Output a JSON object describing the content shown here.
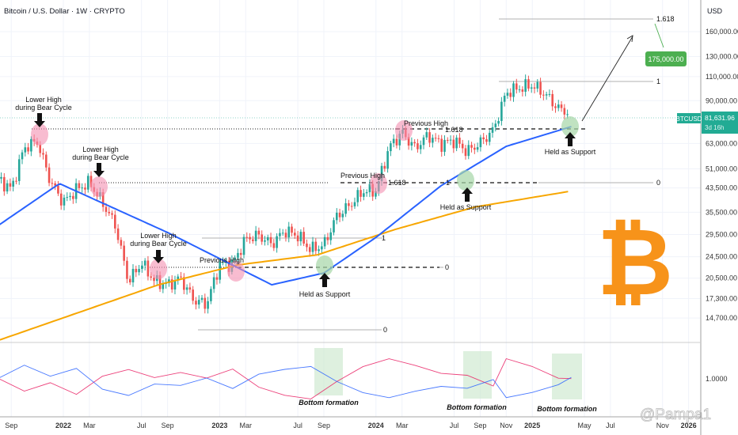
{
  "header": {
    "title": "Bitcoin / U.S. Dollar · 1W · CRYPTO"
  },
  "axis": {
    "currency": "USD",
    "price_ticks": [
      "160,000.00",
      "130,000.00",
      "110,000.00",
      "90,000.00",
      "63,000.00",
      "51,000.00",
      "43,500.00",
      "35,500.00",
      "29,500.00",
      "24,500.00",
      "20,500.00",
      "17,300.00",
      "14,700.00"
    ],
    "price_tick_values": [
      160000,
      130000,
      110000,
      90000,
      63000,
      51000,
      43500,
      35500,
      29500,
      24500,
      20500,
      17300,
      14700
    ],
    "lower_tick": "1.0000",
    "time_ticks": [
      {
        "label": "Sep",
        "m": -4,
        "bold": false
      },
      {
        "label": "2022",
        "m": 0,
        "bold": true
      },
      {
        "label": "Mar",
        "m": 2,
        "bold": false
      },
      {
        "label": "Jul",
        "m": 6,
        "bold": false
      },
      {
        "label": "Sep",
        "m": 8,
        "bold": false
      },
      {
        "label": "2023",
        "m": 12,
        "bold": true
      },
      {
        "label": "Mar",
        "m": 14,
        "bold": false
      },
      {
        "label": "Jul",
        "m": 18,
        "bold": false
      },
      {
        "label": "Sep",
        "m": 20,
        "bold": false
      },
      {
        "label": "2024",
        "m": 24,
        "bold": true
      },
      {
        "label": "Mar",
        "m": 26,
        "bold": false
      },
      {
        "label": "Jul",
        "m": 30,
        "bold": false
      },
      {
        "label": "Sep",
        "m": 32,
        "bold": false
      },
      {
        "label": "Nov",
        "m": 34,
        "bold": false
      },
      {
        "label": "2025",
        "m": 36,
        "bold": true
      },
      {
        "label": "May",
        "m": 40,
        "bold": false
      },
      {
        "label": "Jul",
        "m": 42,
        "bold": false
      },
      {
        "label": "Nov",
        "m": 46,
        "bold": false
      },
      {
        "label": "2026",
        "m": 48,
        "bold": true
      }
    ]
  },
  "price_label": {
    "symbol": "BTCUSD",
    "price": "81,631.96",
    "countdown": "3d 16h"
  },
  "target_label": "175,000.00",
  "annotations": {
    "lower_high_1": "Lower High",
    "lower_high_2": "during Bear Cycle",
    "previous_high": "Previous High",
    "held_support": "Held as Support",
    "bottom_formation": "Bottom formation",
    "fib_1618": "1.618",
    "fib_1": "1",
    "fib_0": "0"
  },
  "watermark": "@Pampa1",
  "colors": {
    "up": "#26a69a",
    "down": "#ef5350",
    "ma50": "#2962ff",
    "ma200": "#f7a600",
    "bitcoin": "#f7931a",
    "teal": "#22ab94",
    "green_label": "#4caf50"
  },
  "chart_data": {
    "type": "candlestick",
    "title": "Bitcoin / U.S. Dollar · 1W · CRYPTO",
    "x_unit": "months since Jan 2022",
    "y_scale": "log",
    "ylim": [
      13000,
      190000
    ],
    "monthly_close": [
      [
        -5,
        47000
      ],
      [
        -4,
        43000
      ],
      [
        -3,
        61000
      ],
      [
        -2,
        64000
      ],
      [
        -1,
        46000
      ],
      [
        0,
        38500
      ],
      [
        1,
        43000
      ],
      [
        2,
        45500
      ],
      [
        3,
        38500
      ],
      [
        4,
        31800
      ],
      [
        5,
        19900
      ],
      [
        6,
        23300
      ],
      [
        7,
        20000
      ],
      [
        8,
        19400
      ],
      [
        9,
        20500
      ],
      [
        10,
        17100
      ],
      [
        11,
        16500
      ],
      [
        12,
        23100
      ],
      [
        13,
        23100
      ],
      [
        14,
        28500
      ],
      [
        15,
        29300
      ],
      [
        16,
        27200
      ],
      [
        17,
        30500
      ],
      [
        18,
        29200
      ],
      [
        19,
        26000
      ],
      [
        20,
        27000
      ],
      [
        21,
        34500
      ],
      [
        22,
        37700
      ],
      [
        23,
        42300
      ],
      [
        24,
        42500
      ],
      [
        25,
        61000
      ],
      [
        26,
        69000
      ],
      [
        27,
        60600
      ],
      [
        28,
        67500
      ],
      [
        29,
        62700
      ],
      [
        30,
        64600
      ],
      [
        31,
        58900
      ],
      [
        32,
        63300
      ],
      [
        33,
        70300
      ],
      [
        34,
        96400
      ],
      [
        35,
        100000
      ],
      [
        36,
        102400
      ],
      [
        37,
        95000
      ],
      [
        38,
        84300
      ],
      [
        38.8,
        81632
      ]
    ],
    "series": [
      {
        "name": "MA 50W",
        "points": [
          [
            -5,
            31800
          ],
          [
            -0.3,
            45100
          ],
          [
            8,
            30000
          ],
          [
            16,
            19400
          ],
          [
            20,
            21400
          ],
          [
            24,
            28800
          ],
          [
            29,
            44300
          ],
          [
            34,
            61500
          ],
          [
            39,
            72500
          ]
        ]
      },
      {
        "name": "MA 200W",
        "points": [
          [
            -5,
            12200
          ],
          [
            7.3,
            19400
          ],
          [
            13.4,
            22900
          ],
          [
            19.5,
            24900
          ],
          [
            25.5,
            30800
          ],
          [
            31.6,
            37100
          ],
          [
            38.9,
            42300
          ]
        ]
      }
    ],
    "lower_pane": {
      "red": [
        [
          -5,
          50
        ],
        [
          -3,
          30
        ],
        [
          -1,
          45
        ],
        [
          1,
          30
        ],
        [
          3,
          60
        ],
        [
          5,
          70
        ],
        [
          7,
          55
        ],
        [
          9,
          60
        ],
        [
          11,
          50
        ],
        [
          13,
          65
        ],
        [
          15,
          40
        ],
        [
          17,
          30
        ],
        [
          19,
          25
        ],
        [
          21,
          50
        ],
        [
          23,
          70
        ],
        [
          25,
          80
        ],
        [
          27,
          70
        ],
        [
          29,
          60
        ],
        [
          31,
          60
        ],
        [
          33,
          45
        ],
        [
          34,
          80
        ],
        [
          36,
          70
        ],
        [
          38,
          55
        ],
        [
          39,
          50
        ]
      ],
      "blue": [
        [
          -5,
          50
        ],
        [
          -3,
          70
        ],
        [
          -1,
          55
        ],
        [
          1,
          70
        ],
        [
          3,
          40
        ],
        [
          5,
          30
        ],
        [
          7,
          45
        ],
        [
          9,
          40
        ],
        [
          11,
          50
        ],
        [
          13,
          35
        ],
        [
          15,
          60
        ],
        [
          17,
          70
        ],
        [
          19,
          75
        ],
        [
          21,
          50
        ],
        [
          23,
          30
        ],
        [
          25,
          20
        ],
        [
          27,
          30
        ],
        [
          29,
          40
        ],
        [
          31,
          40
        ],
        [
          33,
          55
        ],
        [
          34,
          20
        ],
        [
          36,
          30
        ],
        [
          38,
          45
        ],
        [
          39,
          52
        ]
      ]
    },
    "target": 175000
  }
}
